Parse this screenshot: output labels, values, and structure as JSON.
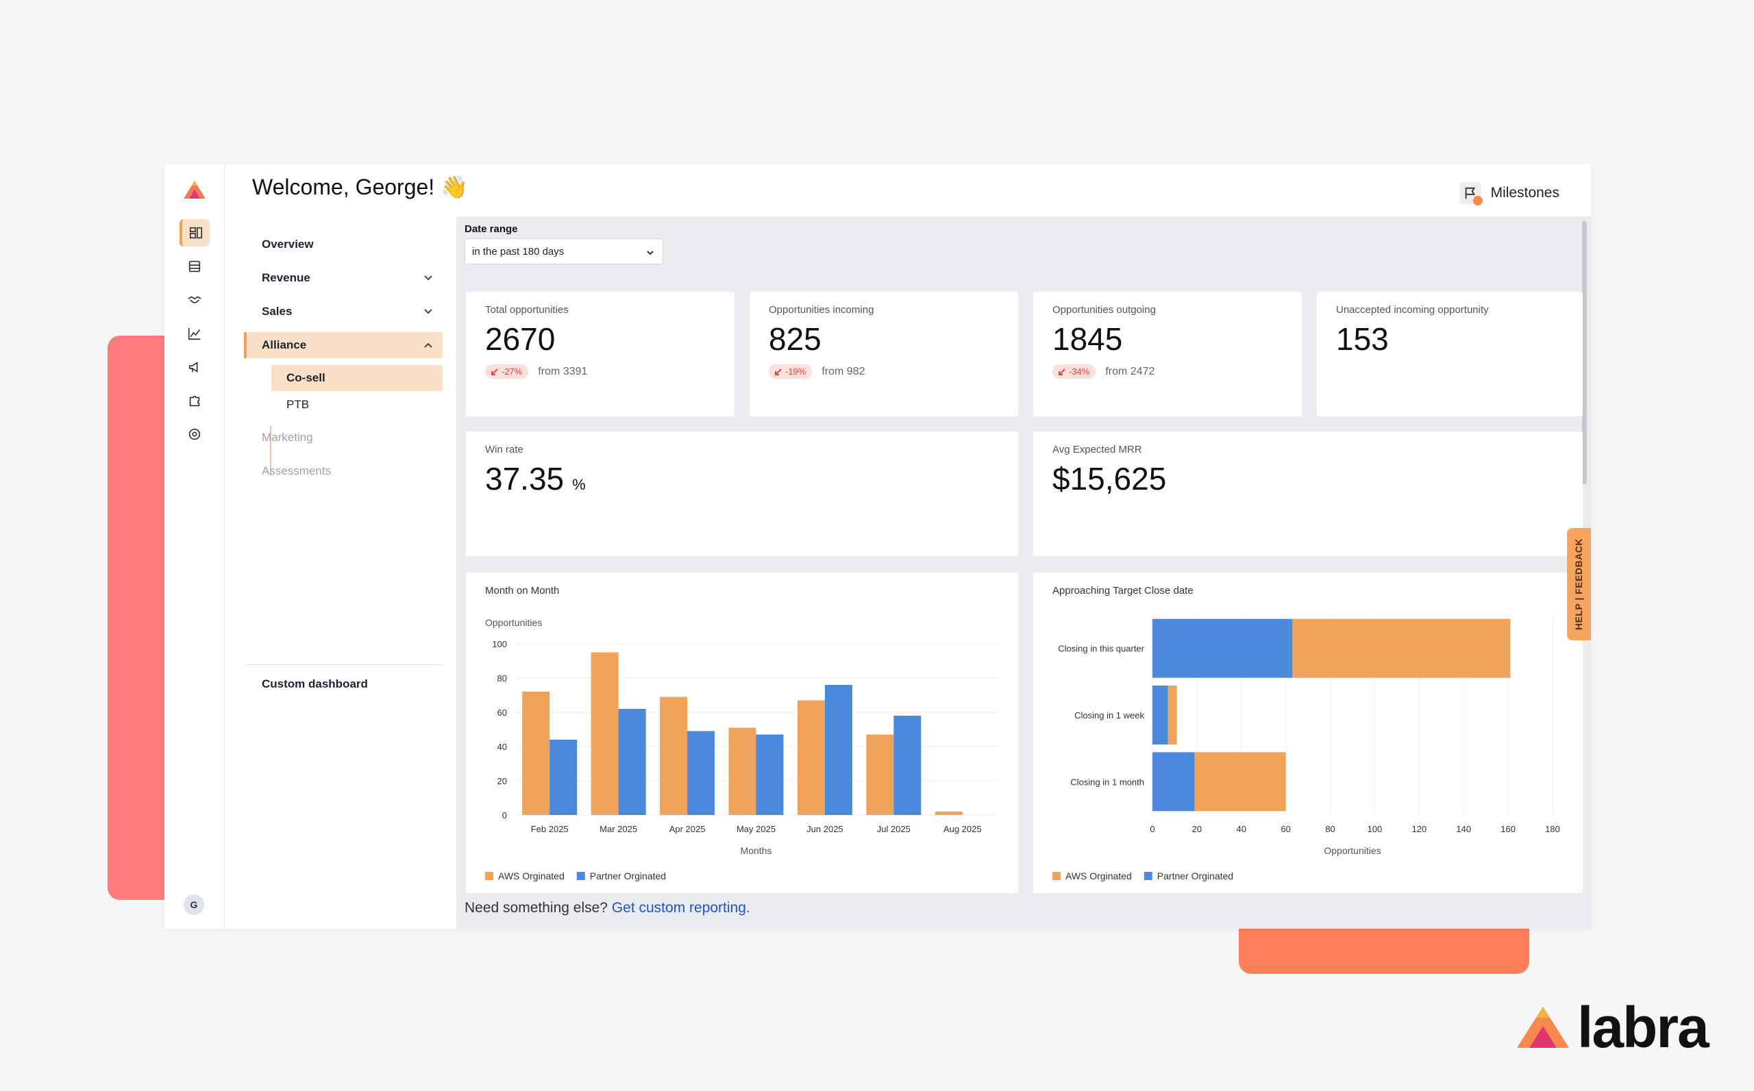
{
  "header": {
    "welcome": "Welcome, George! 👋",
    "milestones_label": "Milestones"
  },
  "rail": {
    "icons": [
      "dashboard-icon",
      "storage-icon",
      "handshake-icon",
      "chart-icon",
      "megaphone-icon",
      "puzzle-icon",
      "settings-icon"
    ],
    "user_initial": "G"
  },
  "nav": {
    "overview": "Overview",
    "revenue": "Revenue",
    "sales": "Sales",
    "alliance": "Alliance",
    "cosell": "Co-sell",
    "ptb": "PTB",
    "marketing": "Marketing",
    "assessments": "Assessments",
    "custom_dashboard": "Custom dashboard"
  },
  "filters": {
    "date_range_label": "Date range",
    "date_range_value": "in the past 180 days"
  },
  "metrics": {
    "total": {
      "title": "Total opportunities",
      "value": "2670",
      "change": "-27%",
      "from": "from 3391"
    },
    "incoming": {
      "title": "Opportunities incoming",
      "value": "825",
      "change": "-19%",
      "from": "from 982"
    },
    "outgoing": {
      "title": "Opportunities outgoing",
      "value": "1845",
      "change": "-34%",
      "from": "from 2472"
    },
    "unaccepted": {
      "title": "Unaccepted incoming opportunity",
      "value": "153"
    },
    "win_rate": {
      "title": "Win rate",
      "value": "37.35",
      "unit": "%"
    },
    "avg_mrr": {
      "title": "Avg Expected MRR",
      "value": "$15,625"
    }
  },
  "footer": {
    "text": "Need something else?",
    "link": "Get custom reporting."
  },
  "help_tab": "HELP | FEEDBACK",
  "brand": {
    "wordmark": "labra"
  },
  "colors": {
    "aws": "#f0a35a",
    "partner": "#4a89dc",
    "accent": "#f0a05c",
    "active_bg": "#fbe0c8"
  },
  "chart_data": [
    {
      "type": "bar",
      "title": "Month on Month",
      "ylabel": "Opportunities",
      "xlabel": "Months",
      "categories": [
        "Feb 2025",
        "Mar 2025",
        "Apr 2025",
        "May 2025",
        "Jun 2025",
        "Jul 2025",
        "Aug 2025"
      ],
      "ylim": [
        0,
        100
      ],
      "yticks": [
        0,
        20,
        40,
        60,
        80,
        100
      ],
      "series": [
        {
          "name": "AWS Orginated",
          "values": [
            72,
            95,
            69,
            51,
            67,
            47,
            2
          ]
        },
        {
          "name": "Partner Orginated",
          "values": [
            44,
            62,
            49,
            47,
            76,
            58,
            0
          ]
        }
      ],
      "legend": "bottom-left",
      "grid": true
    },
    {
      "type": "bar",
      "orientation": "horizontal",
      "stacked": true,
      "title": "Approaching Target Close date",
      "xlabel": "Opportunities",
      "categories": [
        "Closing in this quarter",
        "Closing in 1 week",
        "Closing in 1 month"
      ],
      "xlim": [
        0,
        180
      ],
      "xticks": [
        0,
        20,
        40,
        60,
        80,
        100,
        120,
        140,
        160,
        180
      ],
      "series": [
        {
          "name": "Partner Orginated",
          "values": [
            63,
            7,
            19
          ]
        },
        {
          "name": "AWS Orginated",
          "values": [
            98,
            4,
            41
          ]
        }
      ],
      "legend_order": [
        "AWS Orginated",
        "Partner Orginated"
      ],
      "legend": "bottom-left",
      "grid": true
    }
  ]
}
